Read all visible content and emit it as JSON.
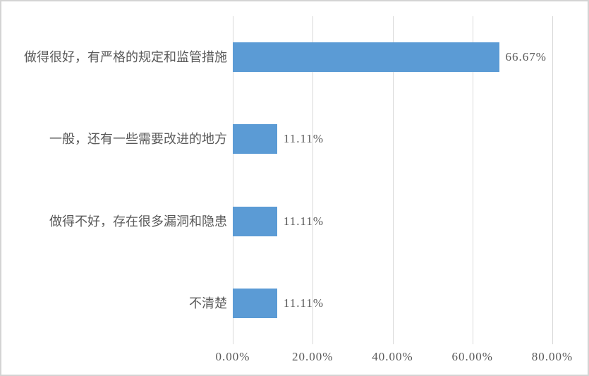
{
  "chart_data": {
    "type": "bar",
    "orientation": "horizontal",
    "title": "",
    "xlabel": "",
    "ylabel": "",
    "grid": true,
    "legend": false,
    "categories": [
      "做得很好，有严格的规定和监管措施",
      "一般，还有一些需要改进的地方",
      "做得不好，存在很多漏洞和隐患",
      "不清楚"
    ],
    "values": [
      66.67,
      11.11,
      11.11,
      11.11
    ],
    "value_labels": [
      "66.67%",
      "11.11%",
      "11.11%",
      "11.11%"
    ],
    "x_ticks": [
      "0.00%",
      "20.00%",
      "40.00%",
      "60.00%",
      "80.00%"
    ],
    "x_tick_values": [
      0,
      20,
      40,
      60,
      80
    ],
    "xlim": [
      0,
      80
    ],
    "bar_color": "#5B9BD5",
    "gridline_color": "#D9D9D9",
    "text_color": "#595959",
    "frame_border_color": "#D4D4D4"
  }
}
